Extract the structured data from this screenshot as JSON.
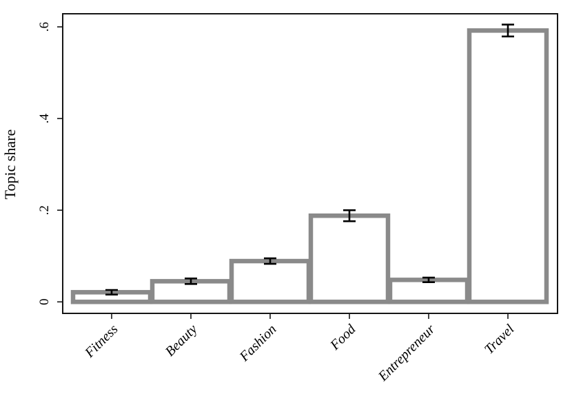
{
  "chart_data": {
    "type": "bar",
    "title": "",
    "xlabel": "",
    "ylabel": "Topic share",
    "categories": [
      "Fitness",
      "Beauty",
      "Fashion",
      "Food",
      "Entrepreneur",
      "Travel"
    ],
    "values": [
      0.021,
      0.045,
      0.089,
      0.188,
      0.048,
      0.592
    ],
    "error_low": [
      0.016,
      0.039,
      0.083,
      0.176,
      0.043,
      0.579
    ],
    "error_high": [
      0.026,
      0.051,
      0.095,
      0.2,
      0.053,
      0.605
    ],
    "ylim": [
      -0.025,
      0.63
    ],
    "yticks": [
      0,
      0.2,
      0.4,
      0.6
    ],
    "ytick_labels": [
      "0",
      ".2",
      ".4",
      ".6"
    ],
    "grid": false,
    "legend": "none",
    "bar_fill": "#ffffff",
    "bar_outline": "#8a8a8a",
    "error_color": "#000000",
    "frame_color": "#151515",
    "tick_color": "#151515",
    "background": "#ffffff"
  }
}
